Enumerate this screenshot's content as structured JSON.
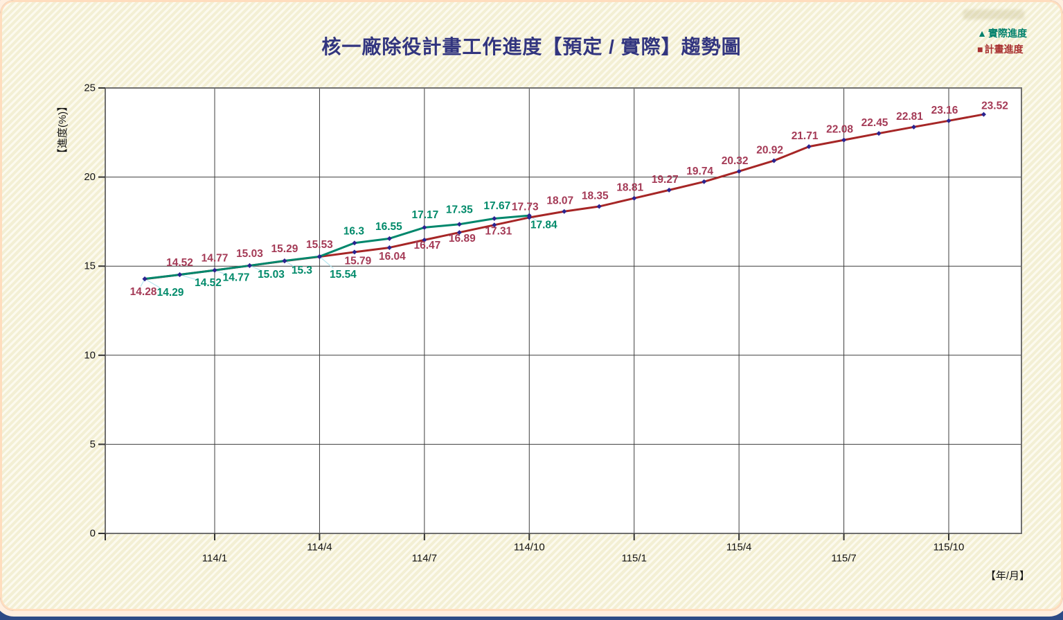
{
  "page": {
    "background_accent": "#2D4B86",
    "panel_stripe_colors": [
      "#FCFAEE",
      "#F3EFD4"
    ]
  },
  "legend": {
    "items": [
      {
        "label": "實際進度",
        "marker_glyph": "▲",
        "color": "#00806B"
      },
      {
        "label": "計畫進度",
        "marker_glyph": "■",
        "color": "#A83030"
      }
    ]
  },
  "chart_data": {
    "type": "line",
    "title": "核一廠除役計畫工作進度【預定 / 實際】趨勢圖",
    "xlabel": "【年/月】",
    "ylabel": "【進度(%)】",
    "ylim": [
      0,
      25
    ],
    "y_ticks": [
      0,
      5,
      10,
      15,
      20,
      25
    ],
    "x_tick_labels": [
      "114/1",
      "114/4",
      "114/7",
      "114/10",
      "115/1",
      "115/4",
      "115/7",
      "115/10"
    ],
    "x_tick_indices": [
      2,
      5,
      8,
      11,
      14,
      17,
      20,
      23
    ],
    "grid": true,
    "legend_position": "top-right",
    "marker_color": "#2B2490",
    "series": [
      {
        "name": "計畫進度",
        "line_color": "#A62626",
        "label_color": "#A43A56",
        "values": [
          14.28,
          14.52,
          14.77,
          15.03,
          15.29,
          15.53,
          15.79,
          16.04,
          16.47,
          16.89,
          17.31,
          17.73,
          18.07,
          18.35,
          18.81,
          19.27,
          19.74,
          20.32,
          20.92,
          21.71,
          22.08,
          22.45,
          22.81,
          23.16,
          23.52
        ]
      },
      {
        "name": "實際進度",
        "line_color": "#00876C",
        "label_color": "#008A6A",
        "values": [
          14.29,
          14.52,
          14.77,
          15.03,
          15.3,
          15.54,
          16.3,
          16.55,
          17.17,
          17.35,
          17.67,
          17.84
        ]
      }
    ]
  }
}
